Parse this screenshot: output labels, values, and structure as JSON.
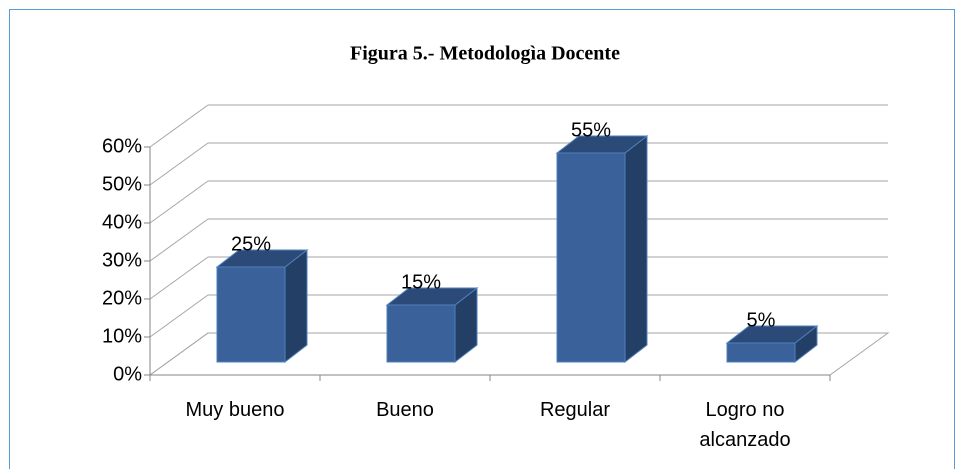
{
  "chart_data": {
    "type": "bar3d",
    "title": "Figura 5.- Metodologìa Docente",
    "categories": [
      "Muy bueno",
      "Bueno",
      "Regular",
      "Logro no alcanzado"
    ],
    "values": [
      25,
      15,
      55,
      5
    ],
    "value_labels": [
      "25%",
      "15%",
      "55%",
      "5%"
    ],
    "color": "#3a6199",
    "ylim": [
      0,
      60
    ],
    "yticks": [
      {
        "value": 0,
        "label": "0%"
      },
      {
        "value": 10,
        "label": "10%"
      },
      {
        "value": 20,
        "label": "20%"
      },
      {
        "value": 30,
        "label": "30%"
      },
      {
        "value": 40,
        "label": "40%"
      },
      {
        "value": 50,
        "label": "50%"
      },
      {
        "value": 60,
        "label": "60%"
      }
    ],
    "grid": true
  }
}
